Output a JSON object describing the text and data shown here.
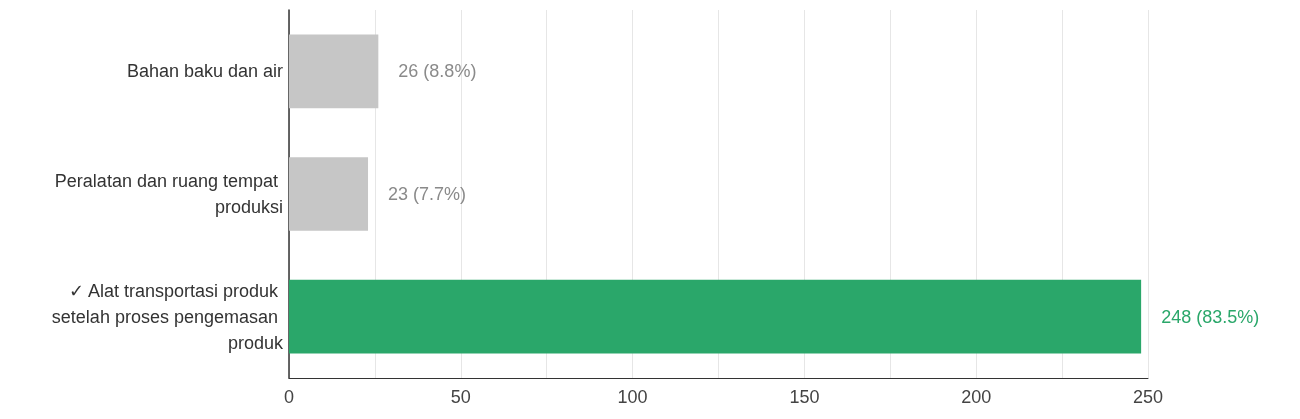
{
  "chart_data": {
    "type": "bar",
    "orientation": "horizontal",
    "categories": [
      "Bahan baku dan air",
      "Peralatan dan ruang tempat produksi",
      "✓ Alat transportasi produk setelah proses pengemasan produk"
    ],
    "values": [
      26,
      23,
      248
    ],
    "colors": [
      "#c6c6c6",
      "#c6c6c6",
      "#2aa76a"
    ],
    "value_labels": [
      "26 (8.8%)",
      "23 (7.7%)",
      "248 (83.5%)"
    ],
    "xlim": [
      0,
      250
    ],
    "xticks": [
      0,
      {
        "value": 25,
        "label": null
      },
      50,
      {
        "value": 75,
        "label": null
      },
      100,
      {
        "value": 125,
        "label": null
      },
      150,
      {
        "value": 175,
        "label": null
      },
      200,
      {
        "value": 225,
        "label": null
      },
      250
    ],
    "grid": "x"
  }
}
